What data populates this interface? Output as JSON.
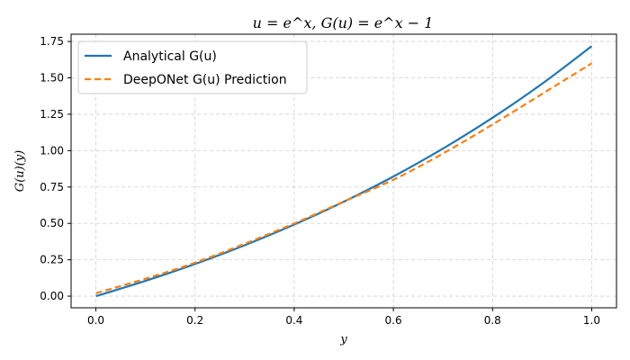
{
  "chart_data": {
    "type": "line",
    "title": "u = e^x, G(u) = e^x − 1",
    "xlabel": "y",
    "ylabel": "G(u)(y)",
    "xlim": [
      -0.05,
      1.05
    ],
    "ylim": [
      -0.08,
      1.8
    ],
    "xticks": [
      0.0,
      0.2,
      0.4,
      0.6,
      0.8,
      1.0
    ],
    "xtick_labels": [
      "0.0",
      "0.2",
      "0.4",
      "0.6",
      "0.8",
      "1.0"
    ],
    "yticks": [
      0.0,
      0.25,
      0.5,
      0.75,
      1.0,
      1.25,
      1.5,
      1.75
    ],
    "ytick_labels": [
      "0.00",
      "0.25",
      "0.50",
      "0.75",
      "1.00",
      "1.25",
      "1.50",
      "1.75"
    ],
    "grid": true,
    "legend_position": "top-left",
    "series": [
      {
        "name": "Analytical G(u)",
        "color": "#1f77b4",
        "style": "solid",
        "x": [
          0.0,
          0.1,
          0.2,
          0.3,
          0.4,
          0.5,
          0.6,
          0.7,
          0.8,
          0.9,
          1.0
        ],
        "y": [
          0.0,
          0.105,
          0.221,
          0.35,
          0.492,
          0.649,
          0.822,
          1.014,
          1.226,
          1.46,
          1.718
        ]
      },
      {
        "name": "DeepONet G(u) Prediction",
        "color": "#ff7f0e",
        "style": "dashed",
        "x": [
          0.0,
          0.1,
          0.2,
          0.3,
          0.4,
          0.5,
          0.6,
          0.7,
          0.8,
          0.9,
          1.0
        ],
        "y": [
          0.02,
          0.12,
          0.23,
          0.36,
          0.5,
          0.65,
          0.8,
          0.98,
          1.18,
          1.39,
          1.6
        ]
      }
    ]
  }
}
